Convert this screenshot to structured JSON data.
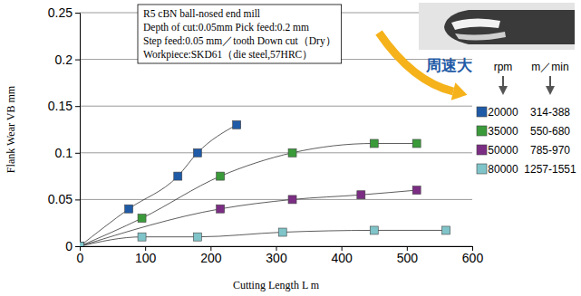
{
  "chart_data": {
    "type": "scatter",
    "x_label": "Cutting Length L m",
    "y_label": "Flank Wear VB mm",
    "xlim": [
      0,
      600
    ],
    "xticks": [
      0,
      100,
      200,
      300,
      400,
      500,
      600
    ],
    "ylim": [
      0,
      0.25
    ],
    "yticks": [
      0,
      0.05,
      0.1,
      0.15,
      0.2,
      0.25
    ],
    "grid": true,
    "legend": "right",
    "marker": "square",
    "line_style": "solid",
    "note": [
      "R5 cBN ball-nosed end mill",
      "Depth of cut:0.05mm  Pick feed:0.2 mm",
      "Step feed:0.05 mm／tooth  Down cut（Dry）",
      "Workpiece:SKD61（die steel,57HRC）"
    ],
    "annotation": "周速大",
    "legend_headers": [
      "rpm",
      "m／min"
    ],
    "series": [
      {
        "name": "20000",
        "cutting_speed": "314-388",
        "color": "#1f5aa6",
        "x": [
          0,
          75,
          150,
          180,
          240
        ],
        "values": [
          0,
          0.04,
          0.075,
          0.1,
          0.13
        ]
      },
      {
        "name": "35000",
        "cutting_speed": "550-680",
        "color": "#3a9a3a",
        "x": [
          0,
          95,
          215,
          325,
          450,
          515
        ],
        "values": [
          0,
          0.03,
          0.075,
          0.1,
          0.11,
          0.11
        ]
      },
      {
        "name": "50000",
        "cutting_speed": "785-970",
        "color": "#7b2d83",
        "x": [
          0,
          215,
          325,
          430,
          515
        ],
        "values": [
          0,
          0.04,
          0.05,
          0.055,
          0.06
        ]
      },
      {
        "name": "80000",
        "cutting_speed": "1257-1551",
        "color": "#7fc4c9",
        "x": [
          0,
          95,
          180,
          310,
          450,
          560
        ],
        "values": [
          0,
          0.01,
          0.01,
          0.015,
          0.017,
          0.017
        ]
      }
    ]
  }
}
